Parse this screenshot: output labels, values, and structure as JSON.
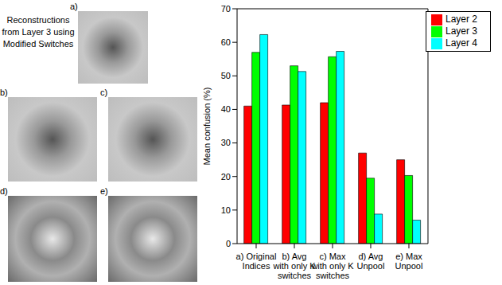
{
  "chart_data": {
    "type": "bar",
    "annotations": [
      "Reconstructions from Layer 3 using Modified Switches",
      "a)",
      "b)",
      "c)",
      "d)",
      "e)"
    ],
    "y_label": "Mean confusion (%)",
    "categories": [
      "a) Original Indices",
      "b) Avg with only K switches",
      "c) Max with only K switches",
      "d) Avg Unpool",
      "e) Max Unpool"
    ],
    "series": [
      {
        "name": "Layer 2",
        "color": "#ff0000",
        "values": [
          41,
          41.3,
          42,
          27,
          25
        ]
      },
      {
        "name": "Layer 3",
        "color": "#00ff00",
        "values": [
          57,
          53,
          55.7,
          19.5,
          20.3
        ]
      },
      {
        "name": "Layer 4",
        "color": "#00ffff",
        "values": [
          62.3,
          51.3,
          57.3,
          8.8,
          7
        ]
      }
    ],
    "ylim": [
      0,
      70
    ],
    "yticks": [
      0,
      10,
      20,
      30,
      40,
      50,
      60,
      70
    ],
    "grid": false,
    "legend": "upper right"
  }
}
